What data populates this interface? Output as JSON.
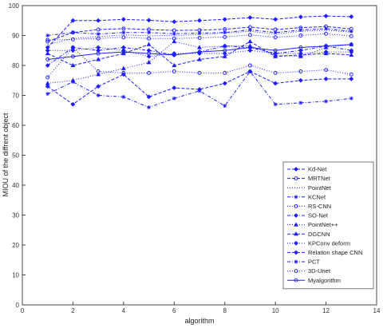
{
  "chart_data": {
    "type": "line",
    "title": "",
    "xlabel": "algorithm",
    "ylabel": "MIOU of the diffrent object",
    "xlim": [
      0,
      14
    ],
    "ylim": [
      0,
      100
    ],
    "xticks": [
      0,
      2,
      4,
      6,
      8,
      10,
      12,
      14
    ],
    "yticks": [
      0,
      10,
      20,
      30,
      40,
      50,
      60,
      70,
      80,
      90,
      100
    ],
    "grid": false,
    "legend_position": "lower-right",
    "color": "#1f1fff",
    "x": [
      1,
      2,
      3,
      4,
      5,
      6,
      7,
      8,
      9,
      10,
      11,
      12,
      13
    ],
    "series": [
      {
        "name": "Kd-Net",
        "marker": "diamond",
        "dash": "dash",
        "values": [
          86.0,
          95.0,
          95.0,
          95.4,
          95.1,
          94.6,
          95.0,
          95.4,
          96.0,
          95.4,
          96.2,
          96.5,
          96.3
        ]
      },
      {
        "name": "MRTNet",
        "marker": "circle",
        "dash": "dash",
        "values": [
          88.0,
          91.0,
          92.0,
          92.3,
          92.0,
          91.7,
          91.8,
          92.1,
          92.8,
          92.0,
          92.6,
          93.0,
          92.2
        ]
      },
      {
        "name": "PointNet",
        "marker": "none",
        "dash": "dot",
        "values": [
          87.0,
          89.0,
          89.6,
          90.2,
          89.9,
          90.0,
          90.3,
          90.8,
          91.4,
          90.5,
          91.4,
          91.8,
          91.1
        ]
      },
      {
        "name": "KCNet",
        "marker": "star",
        "dash": "dashdot",
        "values": [
          90.0,
          91.0,
          90.5,
          91.0,
          91.0,
          90.6,
          90.8,
          91.0,
          91.9,
          91.0,
          91.8,
          92.3,
          91.4
        ]
      },
      {
        "name": "RS-CNN",
        "marker": "circle",
        "dash": "dot",
        "values": [
          88.5,
          88.7,
          89.0,
          89.4,
          89.0,
          89.0,
          89.2,
          89.5,
          90.2,
          89.4,
          90.0,
          90.6,
          89.8
        ]
      },
      {
        "name": "SO-Net",
        "marker": "diamond",
        "dash": "dashdot",
        "values": [
          80.0,
          86.0,
          85.0,
          86.0,
          85.0,
          83.5,
          84.5,
          86.5,
          86.0,
          84.0,
          85.0,
          86.5,
          85.0
        ]
      },
      {
        "name": "PointNet++",
        "marker": "triangle",
        "dash": "dot",
        "values": [
          74.0,
          75.0,
          77.0,
          79.0,
          81.0,
          88.0,
          86.0,
          86.5,
          86.5,
          83.5,
          83.0,
          86.0,
          87.0
        ]
      },
      {
        "name": "DGCNN",
        "marker": "triangle",
        "dash": "dash",
        "values": [
          84.0,
          80.0,
          82.0,
          84.0,
          87.0,
          80.0,
          82.0,
          83.0,
          88.0,
          83.0,
          83.5,
          84.0,
          83.5
        ]
      },
      {
        "name": "KPConv deform",
        "marker": "diamond",
        "dash": "dot",
        "values": [
          85.0,
          85.0,
          86.0,
          85.0,
          83.0,
          84.0,
          84.0,
          84.0,
          85.0,
          84.0,
          84.0,
          84.5,
          84.5
        ]
      },
      {
        "name": "Relation shape CNN",
        "marker": "diamond",
        "dash": "dash",
        "values": [
          73.0,
          67.0,
          73.0,
          77.0,
          69.5,
          72.5,
          72.0,
          74.0,
          78.0,
          74.0,
          75.0,
          75.5,
          75.5
        ]
      },
      {
        "name": "PCT",
        "marker": "star",
        "dash": "dashdot",
        "values": [
          70.5,
          74.5,
          70.0,
          69.5,
          66.0,
          69.0,
          71.5,
          66.5,
          78.0,
          67.0,
          67.5,
          68.0,
          69.0
        ]
      },
      {
        "name": "3D-Unet",
        "marker": "circle",
        "dash": "dot",
        "values": [
          76.0,
          86.0,
          78.0,
          77.5,
          77.5,
          78.0,
          77.5,
          77.5,
          80.0,
          77.5,
          78.0,
          78.5,
          77.0
        ]
      },
      {
        "name": "Myalgorithm",
        "marker": "circle",
        "dash": "solid",
        "values": [
          82.0,
          83.0,
          84.0,
          84.5,
          84.0,
          83.5,
          84.5,
          85.0,
          86.0,
          85.0,
          86.0,
          86.5,
          87.0
        ]
      }
    ]
  }
}
